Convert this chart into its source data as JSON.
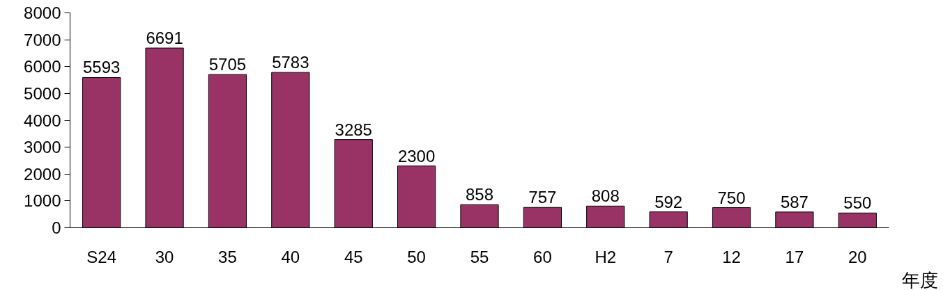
{
  "chart_data": {
    "type": "bar",
    "xlabel": "年度",
    "categories": [
      "S24",
      "30",
      "35",
      "40",
      "45",
      "50",
      "55",
      "60",
      "H2",
      "7",
      "12",
      "17",
      "20"
    ],
    "values": [
      5593,
      6691,
      5705,
      5783,
      3285,
      2300,
      858,
      757,
      808,
      592,
      750,
      587,
      550
    ],
    "color": "#993366",
    "ylim": [
      0,
      8000
    ],
    "yticks": [
      0,
      1000,
      2000,
      3000,
      4000,
      5000,
      6000,
      7000,
      8000
    ],
    "grid": false,
    "data_labels": true
  }
}
